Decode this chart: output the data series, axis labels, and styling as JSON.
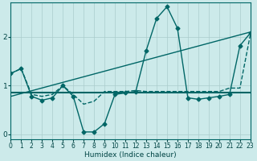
{
  "xlabel": "Humidex (Indice chaleur)",
  "background_color": "#cceaea",
  "grid_color": "#aacccc",
  "line_color": "#006666",
  "x_ticks": [
    0,
    1,
    2,
    3,
    4,
    5,
    6,
    7,
    8,
    9,
    10,
    11,
    12,
    13,
    14,
    15,
    16,
    17,
    18,
    19,
    20,
    21,
    22,
    23
  ],
  "y_ticks": [
    0,
    1,
    2
  ],
  "xlim": [
    0,
    23
  ],
  "ylim": [
    -0.1,
    2.7
  ],
  "series": [
    {
      "x": [
        0,
        1,
        2,
        3,
        4,
        5,
        6,
        7,
        8,
        9,
        10,
        11,
        12,
        13,
        14,
        15,
        16,
        17,
        18,
        19,
        20,
        21,
        22,
        23
      ],
      "y": [
        0.85,
        0.85,
        0.85,
        0.85,
        0.85,
        0.85,
        0.85,
        0.85,
        0.85,
        0.85,
        0.85,
        0.85,
        0.85,
        0.85,
        0.85,
        0.85,
        0.85,
        0.85,
        0.85,
        0.85,
        0.85,
        0.85,
        0.85,
        0.85
      ],
      "marker": null,
      "linestyle": "-",
      "linewidth": 1.5
    },
    {
      "x": [
        0,
        23
      ],
      "y": [
        0.78,
        2.1
      ],
      "marker": null,
      "linestyle": "-",
      "linewidth": 1.0
    },
    {
      "x": [
        0,
        1,
        2,
        3,
        4,
        5,
        6,
        7,
        8,
        9,
        10,
        11,
        12,
        13,
        14,
        15,
        16,
        17,
        18,
        19,
        20,
        21,
        22,
        23
      ],
      "y": [
        1.25,
        1.35,
        0.82,
        0.78,
        0.82,
        1.0,
        0.82,
        0.62,
        0.68,
        0.88,
        0.88,
        0.88,
        0.9,
        0.88,
        0.88,
        0.88,
        0.88,
        0.88,
        0.88,
        0.88,
        0.88,
        0.95,
        0.95,
        2.05
      ],
      "marker": null,
      "linestyle": "--",
      "linewidth": 1.0
    },
    {
      "x": [
        0,
        1,
        2,
        3,
        4,
        5,
        6,
        7,
        8,
        9,
        10,
        11,
        12,
        13,
        14,
        15,
        16,
        17,
        18,
        19,
        20,
        21,
        22,
        23
      ],
      "y": [
        1.25,
        1.35,
        0.78,
        0.7,
        0.75,
        1.0,
        0.78,
        0.05,
        0.05,
        0.22,
        0.82,
        0.85,
        0.88,
        1.72,
        2.38,
        2.62,
        2.18,
        0.75,
        0.72,
        0.75,
        0.78,
        0.82,
        1.82,
        2.08
      ],
      "marker": "D",
      "markersize": 2.5,
      "linestyle": "-",
      "linewidth": 1.0
    }
  ]
}
